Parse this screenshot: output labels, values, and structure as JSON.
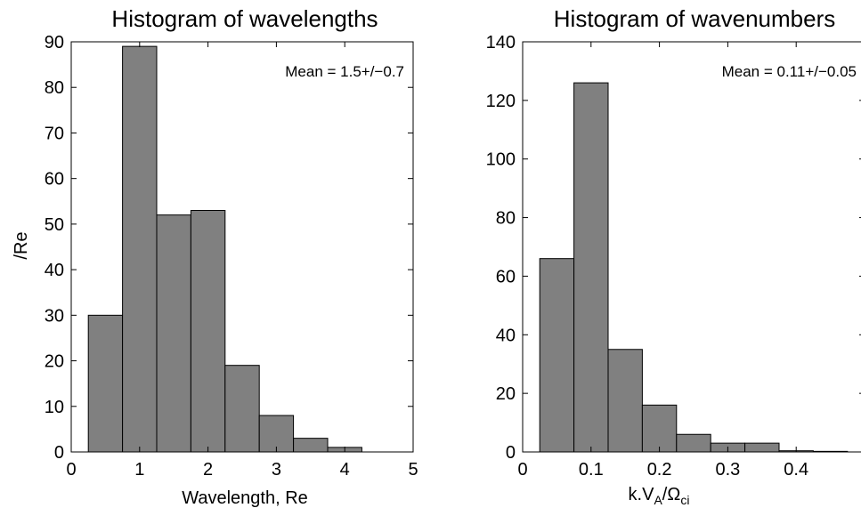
{
  "chart_data": [
    {
      "type": "bar",
      "title": "Histogram of wavelengths",
      "xlabel": "Wavelength, Re",
      "ylabel": "/Re",
      "annotation": "Mean = 1.5+/−0.7",
      "xlim": [
        0,
        5
      ],
      "ylim": [
        0,
        90
      ],
      "xticks": [
        0,
        1,
        2,
        3,
        4,
        5
      ],
      "xtick_labels": [
        "0",
        "1",
        "2",
        "3",
        "4",
        "5"
      ],
      "yticks": [
        0,
        10,
        20,
        30,
        40,
        50,
        60,
        70,
        80,
        90
      ],
      "ytick_labels": [
        "0",
        "10",
        "20",
        "30",
        "40",
        "50",
        "60",
        "70",
        "80",
        "90"
      ],
      "bin_edges": [
        0.25,
        0.75,
        1.25,
        1.75,
        2.25,
        2.75,
        3.25,
        3.75,
        4.25,
        4.75
      ],
      "values": [
        30,
        89,
        52,
        53,
        19,
        8,
        3,
        1,
        0
      ],
      "bar_color": "#808080",
      "grid": false
    },
    {
      "type": "bar",
      "title": "Histogram of wavenumbers",
      "xlabel": "k.V_A/Ω_ci",
      "xlabel_parts": {
        "base": "k.V",
        "sub1": "A",
        "mid": "/Ω",
        "sub2": "ci"
      },
      "annotation": "Mean = 0.11+/−0.05",
      "xlim": [
        0,
        0.5
      ],
      "ylim": [
        0,
        140
      ],
      "xticks": [
        0,
        0.1,
        0.2,
        0.3,
        0.4
      ],
      "xtick_labels": [
        "0",
        "0.1",
        "0.2",
        "0.3",
        "0.4"
      ],
      "yticks": [
        0,
        20,
        40,
        60,
        80,
        100,
        120,
        140
      ],
      "ytick_labels": [
        "0",
        "20",
        "40",
        "60",
        "80",
        "100",
        "120",
        "140"
      ],
      "bin_edges": [
        0.025,
        0.075,
        0.125,
        0.175,
        0.225,
        0.275,
        0.325,
        0.375,
        0.425,
        0.475
      ],
      "values": [
        66,
        126,
        35,
        16,
        6,
        3,
        3,
        0.4,
        0.2
      ],
      "bar_color": "#808080",
      "grid": false
    }
  ]
}
